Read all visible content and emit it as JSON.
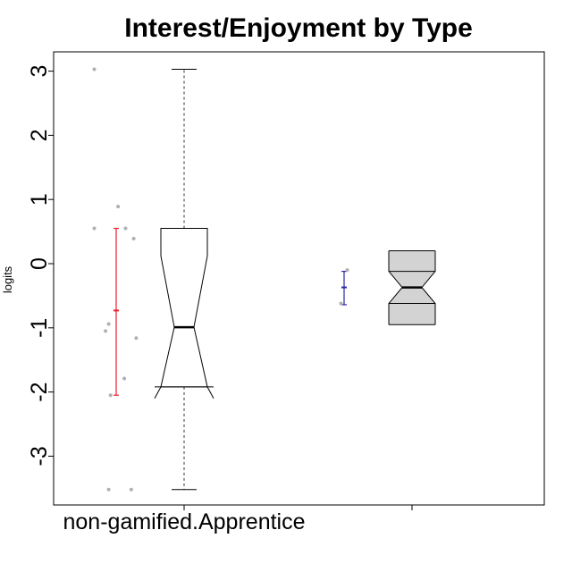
{
  "chart_data": {
    "type": "box",
    "title": "Interest/Enjoyment by Type",
    "xlabel": "",
    "ylabel": "logits",
    "ylim": [
      -3.8,
      3.2
    ],
    "y_ticks": [
      -3,
      -2,
      -1,
      0,
      1,
      2,
      3
    ],
    "categories": [
      "non-gamified.Apprentice",
      ""
    ],
    "groups": [
      {
        "category": "non-gamified.Apprentice",
        "box": {
          "whisker_low": -3.52,
          "q1": -1.92,
          "median": -0.99,
          "q3": 0.55,
          "whisker_high": 3.03,
          "notch_low": -1.92,
          "notch_high": 0.12
        },
        "box_fill": "#ffffff",
        "mean_interval": {
          "mean": -0.73,
          "low": -2.05,
          "high": 0.55,
          "color": "#e8202a"
        },
        "points": [
          {
            "x": -0.35,
            "y": 3.03
          },
          {
            "x": -0.35,
            "y": 0.55
          },
          {
            "x": 0.03,
            "y": 0.89
          },
          {
            "x": 0.15,
            "y": 0.55
          },
          {
            "x": 0.28,
            "y": 0.39
          },
          {
            "x": -0.12,
            "y": -0.94
          },
          {
            "x": -0.17,
            "y": -1.05
          },
          {
            "x": 0.32,
            "y": -1.16
          },
          {
            "x": 0.13,
            "y": -1.79
          },
          {
            "x": -0.09,
            "y": -2.05
          },
          {
            "x": -0.12,
            "y": -3.52
          },
          {
            "x": 0.24,
            "y": -3.52
          }
        ],
        "point_color": "#b0b0b0"
      },
      {
        "category": "",
        "box": {
          "whisker_low": -0.62,
          "q1": -0.62,
          "median": -0.37,
          "q3": -0.12,
          "whisker_high": -0.12,
          "notch_low": -0.62,
          "notch_high": -0.12,
          "hinge_flare_low": -0.95,
          "hinge_flare_high": 0.2
        },
        "box_fill": "#d3d3d3",
        "mean_interval": {
          "mean": -0.37,
          "low": -0.64,
          "high": -0.12,
          "color": "#2a27a6"
        },
        "points": [
          {
            "x": 0.05,
            "y": -0.1
          },
          {
            "x": -0.05,
            "y": -0.62
          }
        ],
        "point_color": "#b0b0b0"
      }
    ],
    "grid": false,
    "legend": "none"
  }
}
